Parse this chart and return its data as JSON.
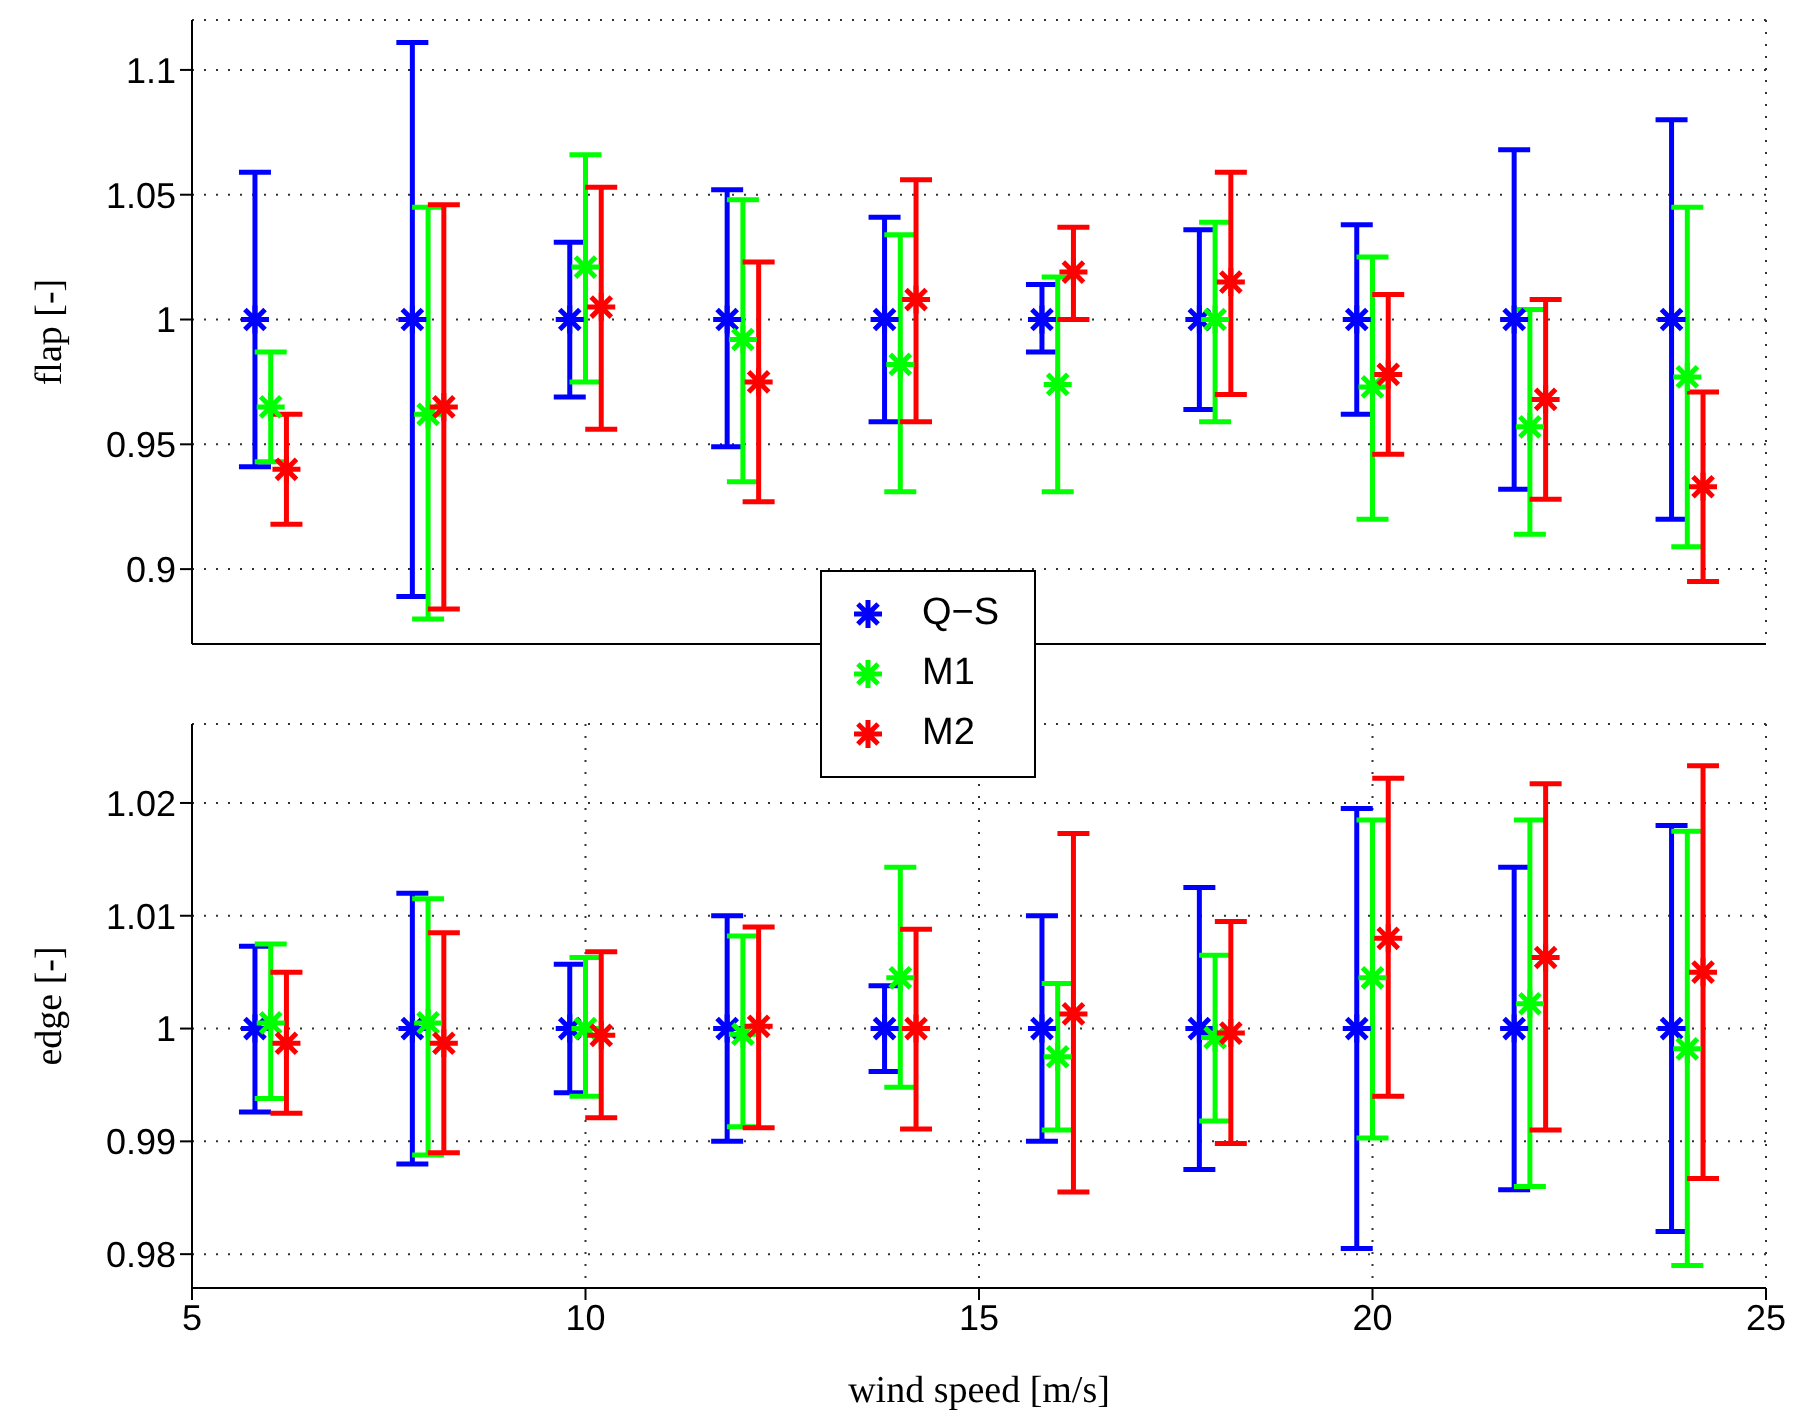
{
  "chart_data": [
    {
      "type": "scatter",
      "ylabel": "flap [-]",
      "xlim": [
        5,
        25
      ],
      "xticks": [
        5,
        10,
        15,
        20,
        25
      ],
      "ylim": [
        0.87,
        1.12
      ],
      "yticks": [
        0.9,
        0.95,
        1,
        1.05,
        1.1
      ],
      "grid": true,
      "marker": "cross",
      "legend": "bottom",
      "tick_labels": "y",
      "series": [
        {
          "name": "Q−S",
          "color": "#0000ff",
          "x": [
            5.8,
            7.8,
            9.8,
            11.8,
            13.8,
            15.8,
            17.8,
            19.8,
            21.8,
            23.8
          ],
          "values": [
            1,
            1,
            1,
            1,
            1,
            1,
            1,
            1,
            1,
            1
          ],
          "errors": [
            [
              0.941,
              1.059
            ],
            [
              0.889,
              1.111
            ],
            [
              0.969,
              1.031
            ],
            [
              0.949,
              1.052
            ],
            [
              0.959,
              1.041
            ],
            [
              0.987,
              1.014
            ],
            [
              0.964,
              1.036
            ],
            [
              0.962,
              1.038
            ],
            [
              0.932,
              1.068
            ],
            [
              0.92,
              1.08
            ]
          ]
        },
        {
          "name": "M1",
          "color": "#00ff00",
          "x": [
            6,
            8,
            10,
            12,
            14,
            16,
            18,
            20,
            22,
            24
          ],
          "values": [
            0.965,
            0.962,
            1.021,
            0.992,
            0.982,
            0.974,
            1.0,
            0.973,
            0.957,
            0.977
          ],
          "errors": [
            [
              0.943,
              0.987
            ],
            [
              0.88,
              1.045
            ],
            [
              0.975,
              1.066
            ],
            [
              0.935,
              1.048
            ],
            [
              0.931,
              1.034
            ],
            [
              0.931,
              1.017
            ],
            [
              0.959,
              1.039
            ],
            [
              0.92,
              1.025
            ],
            [
              0.914,
              1.004
            ],
            [
              0.909,
              1.045
            ]
          ]
        },
        {
          "name": "M2",
          "color": "#ff0000",
          "x": [
            6.2,
            8.2,
            10.2,
            12.2,
            14.2,
            16.2,
            18.2,
            20.2,
            22.2,
            24.2
          ],
          "values": [
            0.94,
            0.965,
            1.005,
            0.975,
            1.008,
            1.019,
            1.015,
            0.978,
            0.968,
            0.933
          ],
          "errors": [
            [
              0.918,
              0.962
            ],
            [
              0.884,
              1.046
            ],
            [
              0.956,
              1.053
            ],
            [
              0.927,
              1.023
            ],
            [
              0.959,
              1.056
            ],
            [
              1.0,
              1.037
            ],
            [
              0.97,
              1.059
            ],
            [
              0.946,
              1.01
            ],
            [
              0.928,
              1.008
            ],
            [
              0.895,
              0.971
            ]
          ]
        }
      ]
    },
    {
      "type": "scatter",
      "xlabel": "wind speed [m/s]",
      "ylabel": "edge [-]",
      "xlim": [
        5,
        25
      ],
      "xticks": [
        5,
        10,
        15,
        20,
        25
      ],
      "ylim": [
        0.977,
        1.027
      ],
      "yticks": [
        0.98,
        0.99,
        1,
        1.01,
        1.02
      ],
      "grid": true,
      "marker": "cross",
      "series": [
        {
          "color": "#0000ff",
          "x": [
            5.8,
            7.8,
            9.8,
            11.8,
            13.8,
            15.8,
            17.8,
            19.8,
            21.8,
            23.8
          ],
          "values": [
            1,
            1,
            1,
            1,
            1,
            1,
            1,
            1,
            1,
            1
          ],
          "errors": [
            [
              0.9926,
              1.0073
            ],
            [
              0.988,
              1.012
            ],
            [
              0.9943,
              1.0057
            ],
            [
              0.99,
              1.01
            ],
            [
              0.9962,
              1.0038
            ],
            [
              0.99,
              1.01
            ],
            [
              0.9875,
              1.0125
            ],
            [
              0.9805,
              1.0195
            ],
            [
              0.9857,
              1.0143
            ],
            [
              0.982,
              1.018
            ]
          ]
        },
        {
          "color": "#00ff00",
          "x": [
            6,
            8,
            10,
            12,
            14,
            16,
            18,
            20,
            22,
            24
          ],
          "values": [
            1.0005,
            1.0005,
            1.0,
            0.9995,
            1.0045,
            0.9975,
            0.9992,
            1.0045,
            1.0022,
            0.9982
          ],
          "errors": [
            [
              0.9938,
              1.0075
            ],
            [
              0.9888,
              1.0115
            ],
            [
              0.994,
              1.0063
            ],
            [
              0.9913,
              1.0082
            ],
            [
              0.9948,
              1.0143
            ],
            [
              0.991,
              1.004
            ],
            [
              0.9918,
              1.0065
            ],
            [
              0.9903,
              1.0185
            ],
            [
              0.986,
              1.0185
            ],
            [
              0.979,
              1.0175
            ]
          ]
        },
        {
          "color": "#ff0000",
          "x": [
            6.2,
            8.2,
            10.2,
            12.2,
            14.2,
            16.2,
            18.2,
            20.2,
            22.2,
            24.2
          ],
          "values": [
            0.9987,
            0.9987,
            0.9994,
            1.0002,
            1.0,
            1.0013,
            0.9996,
            1.008,
            1.0063,
            1.005
          ],
          "errors": [
            [
              0.9925,
              1.005
            ],
            [
              0.989,
              1.0085
            ],
            [
              0.9921,
              1.0068
            ],
            [
              0.9912,
              1.009
            ],
            [
              0.9911,
              1.0088
            ],
            [
              0.9855,
              1.0173
            ],
            [
              0.9898,
              1.0095
            ],
            [
              0.994,
              1.0222
            ],
            [
              0.991,
              1.0217
            ],
            [
              0.9867,
              1.0233
            ]
          ]
        }
      ]
    }
  ]
}
